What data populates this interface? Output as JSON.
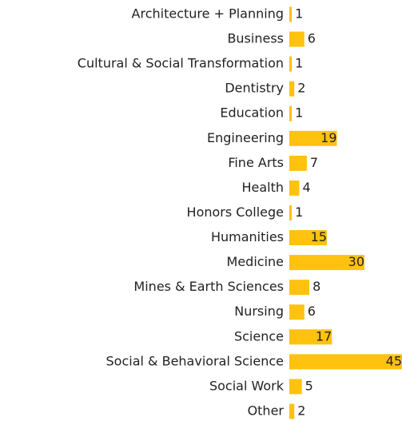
{
  "chart_data": {
    "type": "bar",
    "orientation": "horizontal",
    "categories": [
      "Architecture + Planning",
      "Business",
      "Cultural & Social Transformation",
      "Dentistry",
      "Education",
      "Engineering",
      "Fine Arts",
      "Health",
      "Honors College",
      "Humanities",
      "Medicine",
      "Mines & Earth Sciences",
      "Nursing",
      "Science",
      "Social & Behavioral Science",
      "Social Work",
      "Other"
    ],
    "values": [
      1,
      6,
      1,
      2,
      1,
      19,
      7,
      4,
      1,
      15,
      30,
      8,
      6,
      17,
      45,
      5,
      2
    ],
    "color": "#ffc20e"
  }
}
